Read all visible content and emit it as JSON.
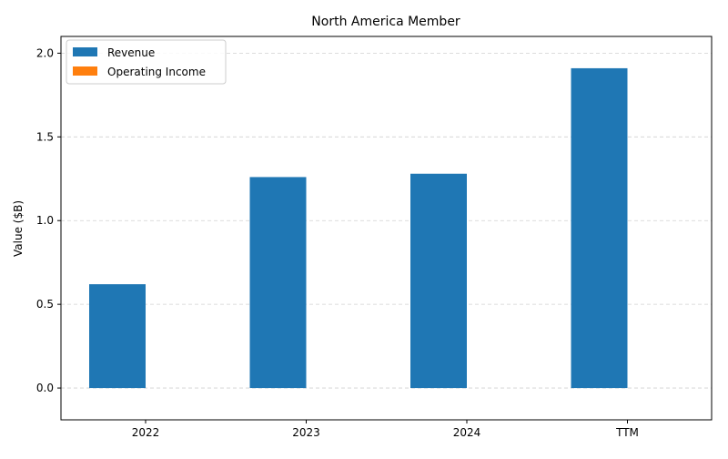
{
  "chart_data": {
    "type": "bar",
    "title": "North America Member",
    "xlabel": "",
    "ylabel": "Value ($B)",
    "categories": [
      "2022",
      "2023",
      "2024",
      "TTM"
    ],
    "series": [
      {
        "name": "Revenue",
        "values": [
          0.62,
          1.26,
          1.28,
          1.91
        ],
        "color": "#1f77b4"
      },
      {
        "name": "Operating Income",
        "values": [
          0.0,
          0.0,
          0.0,
          0.0
        ],
        "color": "#ff7f0e"
      }
    ],
    "ylim": [
      -0.19,
      2.1
    ],
    "yticks": [
      "0.0",
      "0.5",
      "1.0",
      "1.5",
      "2.0"
    ],
    "grid": "y-dashed",
    "legend_position": "top-left"
  }
}
